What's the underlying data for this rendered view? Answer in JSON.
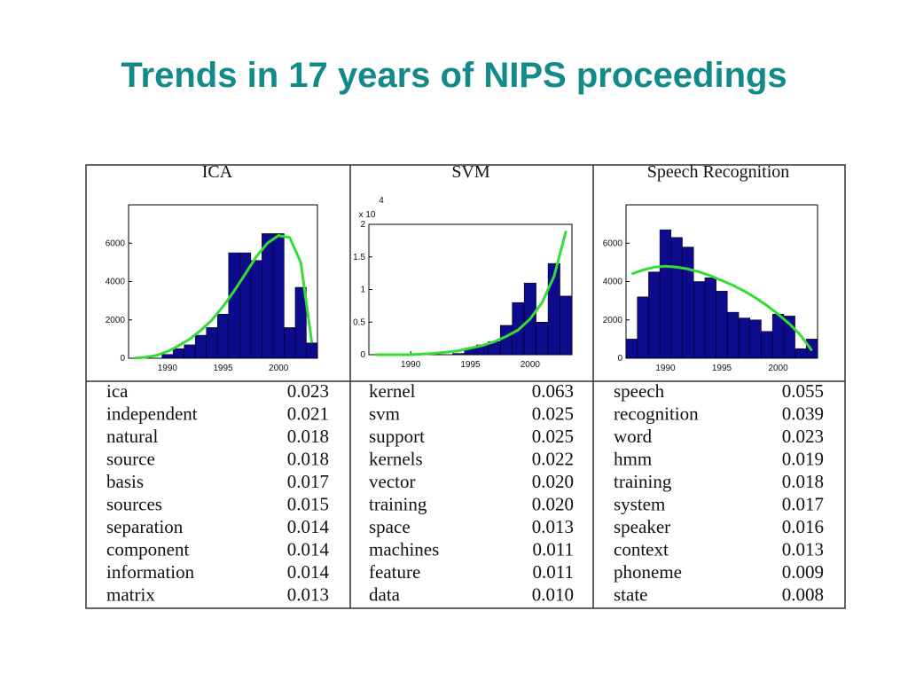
{
  "title": "Trends in 17 years of NIPS proceedings",
  "chart_data": [
    {
      "type": "bar",
      "title": "ICA",
      "x": [
        1987,
        1988,
        1989,
        1990,
        1991,
        1992,
        1993,
        1994,
        1995,
        1996,
        1997,
        1998,
        1999,
        2000,
        2001,
        2002,
        2003
      ],
      "xlim": [
        1986.5,
        2003.5
      ],
      "xticks": [
        1990,
        1995,
        2000
      ],
      "ylim": [
        0,
        8000
      ],
      "yticks": [
        0,
        2000,
        4000,
        6000
      ],
      "series": [
        {
          "type": "bar",
          "color": "#0b0b8c",
          "values": [
            0,
            0,
            0,
            200,
            500,
            700,
            1200,
            1600,
            2300,
            5500,
            5500,
            5100,
            6500,
            6500,
            1600,
            3700,
            800
          ]
        },
        {
          "type": "line",
          "color": "#33dd33",
          "values": [
            0,
            50,
            150,
            350,
            650,
            1000,
            1450,
            2000,
            2700,
            3500,
            4400,
            5300,
            6000,
            6400,
            6300,
            5000,
            800
          ]
        }
      ]
    },
    {
      "type": "bar",
      "title": "SVM",
      "multiplier": "x 10",
      "exponent": "4",
      "x": [
        1987,
        1988,
        1989,
        1990,
        1991,
        1992,
        1993,
        1994,
        1995,
        1996,
        1997,
        1998,
        1999,
        2000,
        2001,
        2002,
        2003
      ],
      "xlim": [
        1986.5,
        2003.5
      ],
      "xticks": [
        1990,
        1995,
        2000
      ],
      "ylim": [
        0,
        2
      ],
      "yticks": [
        0,
        0.5,
        1,
        1.5,
        2
      ],
      "series": [
        {
          "type": "bar",
          "color": "#0b0b8c",
          "values": [
            0,
            0,
            0,
            0,
            0,
            0,
            0,
            0.02,
            0.1,
            0.15,
            0.2,
            0.45,
            0.8,
            1.1,
            0.5,
            1.4,
            0.9
          ]
        },
        {
          "type": "line",
          "color": "#33dd33",
          "values": [
            0,
            0,
            0,
            0,
            0.01,
            0.02,
            0.04,
            0.06,
            0.1,
            0.14,
            0.2,
            0.28,
            0.38,
            0.55,
            0.8,
            1.2,
            1.9
          ]
        }
      ]
    },
    {
      "type": "bar",
      "title": "Speech Recognition",
      "x": [
        1987,
        1988,
        1989,
        1990,
        1991,
        1992,
        1993,
        1994,
        1995,
        1996,
        1997,
        1998,
        1999,
        2000,
        2001,
        2002,
        2003
      ],
      "xlim": [
        1986.5,
        2003.5
      ],
      "xticks": [
        1990,
        1995,
        2000
      ],
      "ylim": [
        0,
        8000
      ],
      "yticks": [
        0,
        2000,
        4000,
        6000
      ],
      "series": [
        {
          "type": "bar",
          "color": "#0b0b8c",
          "values": [
            1000,
            3200,
            4500,
            6700,
            6300,
            5800,
            4000,
            4200,
            3500,
            2400,
            2100,
            2000,
            1400,
            2300,
            2200,
            500,
            1000
          ]
        },
        {
          "type": "line",
          "color": "#33dd33",
          "values": [
            4400,
            4600,
            4750,
            4800,
            4750,
            4650,
            4500,
            4300,
            4050,
            3800,
            3500,
            3150,
            2750,
            2300,
            1800,
            1200,
            400
          ]
        }
      ]
    }
  ],
  "tables": [
    {
      "rows": [
        [
          "ica",
          "0.023"
        ],
        [
          "independent",
          "0.021"
        ],
        [
          "natural",
          "0.018"
        ],
        [
          "source",
          "0.018"
        ],
        [
          "basis",
          "0.017"
        ],
        [
          "sources",
          "0.015"
        ],
        [
          "separation",
          "0.014"
        ],
        [
          "component",
          "0.014"
        ],
        [
          "information",
          "0.014"
        ],
        [
          "matrix",
          "0.013"
        ]
      ]
    },
    {
      "rows": [
        [
          "kernel",
          "0.063"
        ],
        [
          "svm",
          "0.025"
        ],
        [
          "support",
          "0.025"
        ],
        [
          "kernels",
          "0.022"
        ],
        [
          "vector",
          "0.020"
        ],
        [
          "training",
          "0.020"
        ],
        [
          "space",
          "0.013"
        ],
        [
          "machines",
          "0.011"
        ],
        [
          "feature",
          "0.011"
        ],
        [
          "data",
          "0.010"
        ]
      ]
    },
    {
      "rows": [
        [
          "speech",
          "0.055"
        ],
        [
          "recognition",
          "0.039"
        ],
        [
          "word",
          "0.023"
        ],
        [
          "hmm",
          "0.019"
        ],
        [
          "training",
          "0.018"
        ],
        [
          "system",
          "0.017"
        ],
        [
          "speaker",
          "0.016"
        ],
        [
          "context",
          "0.013"
        ],
        [
          "phoneme",
          "0.009"
        ],
        [
          "state",
          "0.008"
        ]
      ]
    }
  ]
}
